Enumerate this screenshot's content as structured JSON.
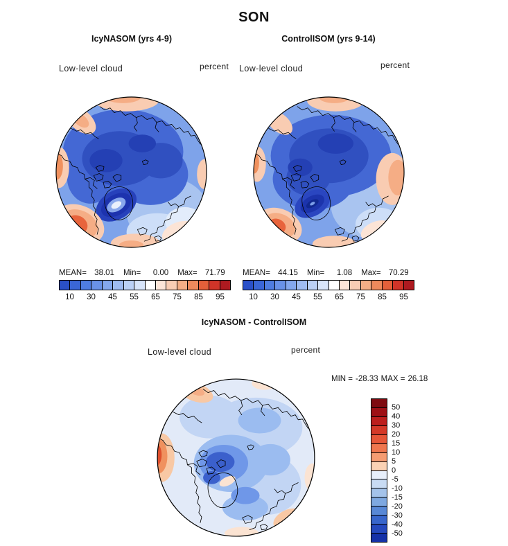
{
  "title": "SON",
  "panels": [
    {
      "title": "IcyNASOM (yrs 4-9)",
      "field_label": "Low-level cloud",
      "units": "percent",
      "stats": {
        "mean_label": "MEAN=",
        "mean": "38.01",
        "min_label": "Min=",
        "min": "0.00",
        "max_label": "Max=",
        "max": "71.79"
      }
    },
    {
      "title": "ControlISOM (yrs 9-14)",
      "field_label": "Low-level cloud",
      "units": "percent",
      "stats": {
        "mean_label": "MEAN=",
        "mean": "44.15",
        "min_label": "Min=",
        "min": "1.08",
        "max_label": "Max=",
        "max": "70.29"
      }
    }
  ],
  "diff": {
    "title": "IcyNASOM - ControlISOM",
    "field_label": "Low-level cloud",
    "units": "percent",
    "min_label": "MIN =",
    "min": "-28.33",
    "max_label": "MAX =",
    "max": "26.18"
  },
  "colorbars": {
    "main": {
      "orientation": "horizontal",
      "colors": [
        "#2a50c8",
        "#3a66d6",
        "#4f7de0",
        "#6992e8",
        "#84a8ee",
        "#9fbcf2",
        "#bbd1f6",
        "#d8e5fa",
        "#ffffff",
        "#fce5d8",
        "#f9cdb4",
        "#f5ae86",
        "#ef8a5c",
        "#e4603a",
        "#d03428",
        "#ae1a20"
      ],
      "tick_labels": [
        "10",
        "30",
        "45",
        "55",
        "65",
        "75",
        "85",
        "95"
      ]
    },
    "diff": {
      "orientation": "vertical",
      "colors": [
        "#7e0a10",
        "#9e1015",
        "#bc1f1d",
        "#d43928",
        "#e65638",
        "#ef764e",
        "#f59c72",
        "#fbd2b4",
        "#e8effa",
        "#c8dbf3",
        "#a4c3ea",
        "#7ea8e0",
        "#5888d6",
        "#3866cc",
        "#2549be",
        "#1531a8"
      ],
      "tick_labels": [
        "50",
        "40",
        "30",
        "20",
        "15",
        "10",
        "5",
        "0",
        "-5",
        "-10",
        "-15",
        "-20",
        "-30",
        "-40",
        "-50"
      ]
    }
  },
  "chart_data": [
    {
      "type": "heatmap",
      "map_type": "north-polar-stereographic-filled-contour",
      "season": "SON",
      "title": "IcyNASOM (yrs 4-9)",
      "variable": "Low-level cloud",
      "units": "percent",
      "mean": 38.01,
      "min": 0.0,
      "max": 71.79,
      "colorbar_tick_values": [
        10,
        30,
        45,
        55,
        65,
        75,
        85,
        95
      ],
      "colorbar_orientation": "horizontal",
      "palette": "blue-white-red",
      "description": "Mostly blue (low cloud percent) over the Arctic interior with dark-blue minima, a concentric low over Greenland, and orange/red maxima around the map rim (mid-latitude oceans)."
    },
    {
      "type": "heatmap",
      "map_type": "north-polar-stereographic-filled-contour",
      "season": "SON",
      "title": "ControlISOM (yrs 9-14)",
      "variable": "Low-level cloud",
      "units": "percent",
      "mean": 44.15,
      "min": 1.08,
      "max": 70.29,
      "colorbar_tick_values": [
        10,
        30,
        45,
        55,
        65,
        75,
        85,
        95
      ],
      "colorbar_orientation": "horizontal",
      "palette": "blue-white-red",
      "description": "Similar blue-dominated Arctic field with a dark concentric minimum over Greenland and warm-colored rim patches; larger warm patch on the right limb."
    },
    {
      "type": "heatmap",
      "map_type": "north-polar-stereographic-filled-contour",
      "season": "SON",
      "title": "IcyNASOM - ControlISOM",
      "variable": "Low-level cloud",
      "units": "percent",
      "min": -28.33,
      "max": 26.18,
      "colorbar_tick_values": [
        50,
        40,
        30,
        20,
        15,
        10,
        5,
        0,
        -5,
        -10,
        -15,
        -20,
        -30,
        -40,
        -50
      ],
      "colorbar_orientation": "vertical",
      "palette": "red-white-blue",
      "description": "Difference map: pale blue/white overall, stronger negative (blue) anomalies near the central Arctic and Greenland, strong positive (orange/red) anomaly at the left rim."
    }
  ]
}
